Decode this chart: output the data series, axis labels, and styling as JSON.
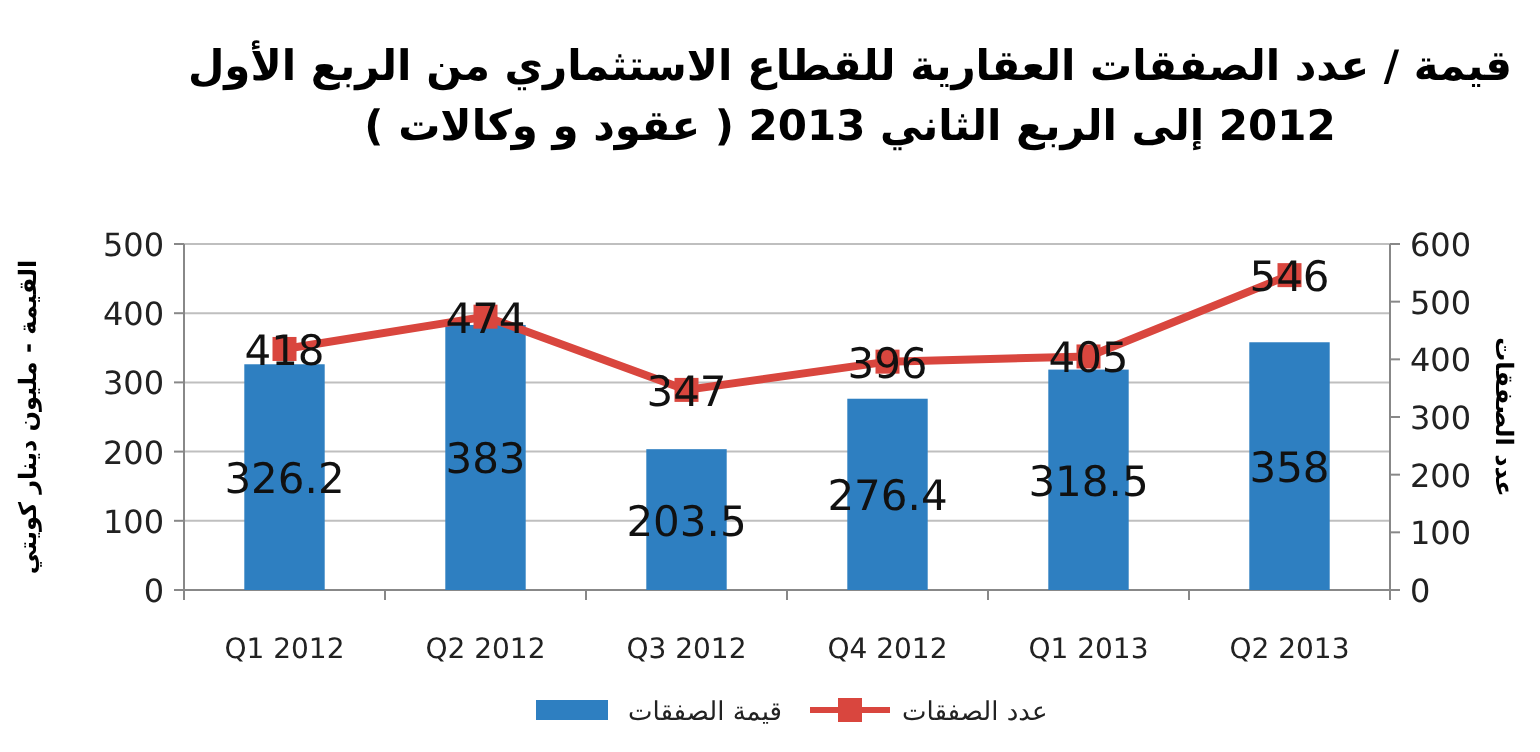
{
  "chart_data": {
    "type": "bar",
    "title": "قيمة / عدد الصفقات العقارية  للقطاع الاستثماري من الربع الأول\n2012 إلى الربع الثاني 2013 ( عقود و وكالات )",
    "ylabel": "القيمة - مليون دينار كويتي",
    "y2label": "عدد الصفقات",
    "categories": [
      "Q1 2012",
      "Q2 2012",
      "Q3 2012",
      "Q4 2012",
      "Q1 2013",
      "Q2 2013"
    ],
    "series": [
      {
        "name": "قيمة الصفقات",
        "color": "#2e7fc1",
        "values": [
          326.2,
          383,
          203.5,
          276.4,
          318.5,
          358
        ]
      },
      {
        "name": "عدد الصفقات",
        "type": "line",
        "axis": "y2",
        "color": "#d9463e",
        "marker": "square",
        "values": [
          418,
          474,
          347,
          396,
          405,
          546
        ]
      }
    ],
    "ylim": [
      0,
      500
    ],
    "yticks": [
      0,
      100,
      200,
      300,
      400,
      500
    ],
    "y2lim": [
      0,
      600
    ],
    "y2ticks": [
      0,
      100,
      200,
      300,
      400,
      500,
      600
    ],
    "grid": "y",
    "legend": "bottom",
    "data_labels": true
  }
}
